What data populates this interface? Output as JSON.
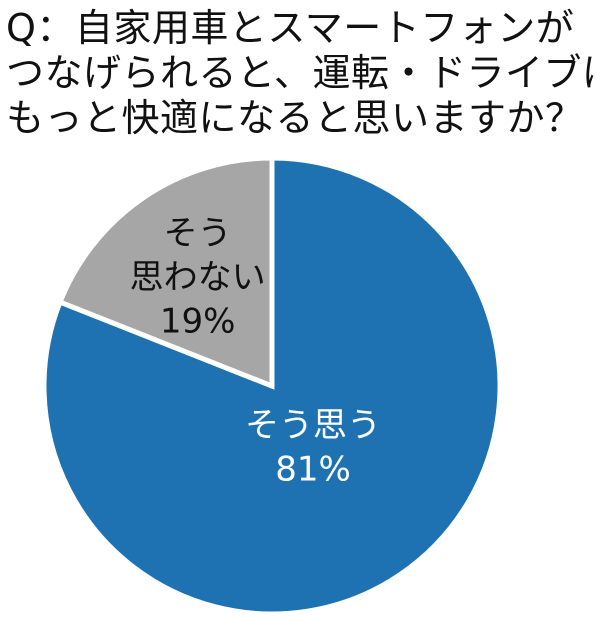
{
  "question": {
    "lines": [
      "Q：自家用車とスマートフォンが",
      "つなげられると、運転・ドライブは",
      "もっと快適になると思いますか？"
    ]
  },
  "chart_data": {
    "type": "pie",
    "title": "Q：自家用車とスマートフォンがつなげられると、運転・ドライブはもっと快適になると思いますか？",
    "slices": [
      {
        "label": "そう思う",
        "value": 81,
        "value_text": "81%",
        "color": "#1f72b2",
        "text_color": "#ffffff"
      },
      {
        "label": "そう思わない",
        "label_lines": [
          "そう",
          "思わない"
        ],
        "value": 19,
        "value_text": "19%",
        "color": "#a6a6a6",
        "text_color": "#111111"
      }
    ],
    "start_angle": "12 o'clock",
    "direction": "clockwise"
  }
}
